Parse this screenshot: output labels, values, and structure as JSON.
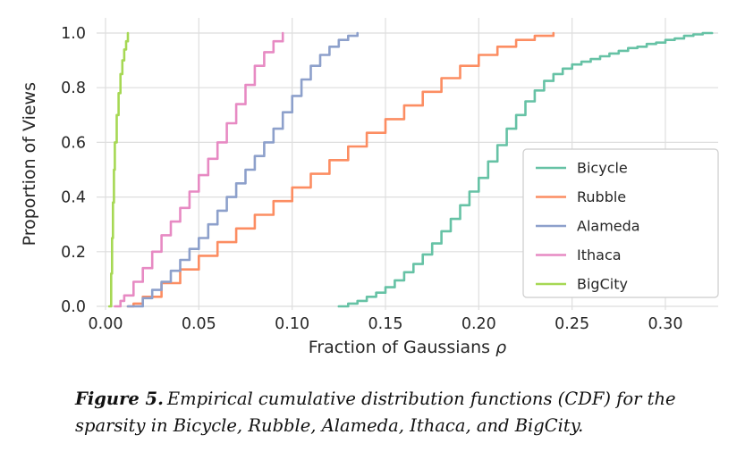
{
  "chart_data": {
    "type": "line",
    "subtype": "empirical-cdf-step",
    "title": "",
    "xlabel": "Fraction of Gaussians ρ",
    "xlabel_text": "Fraction of Gaussians",
    "xlabel_symbol": "ρ",
    "ylabel": "Proportion of Views",
    "xlim": [
      -0.005,
      0.328
    ],
    "ylim": [
      0.0,
      1.0
    ],
    "xticks": [
      0.0,
      0.05,
      0.1,
      0.15,
      0.2,
      0.25,
      0.3
    ],
    "xtick_labels": [
      "0.00",
      "0.05",
      "0.10",
      "0.15",
      "0.20",
      "0.25",
      "0.30"
    ],
    "yticks": [
      0.0,
      0.2,
      0.4,
      0.6,
      0.8,
      1.0
    ],
    "ytick_labels": [
      "0.0",
      "0.2",
      "0.4",
      "0.6",
      "0.8",
      "1.0"
    ],
    "grid": true,
    "legend": {
      "position": "center-right",
      "entries": [
        "Bicycle",
        "Rubble",
        "Alameda",
        "Ithaca",
        "BigCity"
      ]
    },
    "series": [
      {
        "name": "Bicycle",
        "color": "#66c2a5",
        "points": [
          [
            0.125,
            0.0
          ],
          [
            0.13,
            0.01
          ],
          [
            0.135,
            0.02
          ],
          [
            0.14,
            0.035
          ],
          [
            0.145,
            0.05
          ],
          [
            0.15,
            0.07
          ],
          [
            0.155,
            0.095
          ],
          [
            0.16,
            0.125
          ],
          [
            0.165,
            0.155
          ],
          [
            0.17,
            0.19
          ],
          [
            0.175,
            0.23
          ],
          [
            0.18,
            0.275
          ],
          [
            0.185,
            0.32
          ],
          [
            0.19,
            0.37
          ],
          [
            0.195,
            0.42
          ],
          [
            0.2,
            0.47
          ],
          [
            0.205,
            0.53
          ],
          [
            0.21,
            0.59
          ],
          [
            0.215,
            0.65
          ],
          [
            0.22,
            0.7
          ],
          [
            0.225,
            0.75
          ],
          [
            0.23,
            0.79
          ],
          [
            0.235,
            0.825
          ],
          [
            0.24,
            0.85
          ],
          [
            0.245,
            0.87
          ],
          [
            0.25,
            0.885
          ],
          [
            0.255,
            0.895
          ],
          [
            0.26,
            0.905
          ],
          [
            0.265,
            0.915
          ],
          [
            0.27,
            0.925
          ],
          [
            0.275,
            0.935
          ],
          [
            0.28,
            0.945
          ],
          [
            0.285,
            0.95
          ],
          [
            0.29,
            0.96
          ],
          [
            0.295,
            0.965
          ],
          [
            0.3,
            0.975
          ],
          [
            0.305,
            0.98
          ],
          [
            0.31,
            0.99
          ],
          [
            0.315,
            0.995
          ],
          [
            0.32,
            1.0
          ],
          [
            0.325,
            1.0
          ]
        ]
      },
      {
        "name": "Rubble",
        "color": "#fc8d62",
        "points": [
          [
            0.012,
            0.0
          ],
          [
            0.015,
            0.01
          ],
          [
            0.02,
            0.035
          ],
          [
            0.03,
            0.085
          ],
          [
            0.04,
            0.135
          ],
          [
            0.05,
            0.185
          ],
          [
            0.06,
            0.235
          ],
          [
            0.07,
            0.285
          ],
          [
            0.08,
            0.335
          ],
          [
            0.09,
            0.385
          ],
          [
            0.1,
            0.435
          ],
          [
            0.11,
            0.485
          ],
          [
            0.12,
            0.535
          ],
          [
            0.13,
            0.585
          ],
          [
            0.14,
            0.635
          ],
          [
            0.15,
            0.685
          ],
          [
            0.16,
            0.735
          ],
          [
            0.17,
            0.785
          ],
          [
            0.18,
            0.835
          ],
          [
            0.19,
            0.88
          ],
          [
            0.2,
            0.92
          ],
          [
            0.21,
            0.95
          ],
          [
            0.22,
            0.975
          ],
          [
            0.23,
            0.99
          ],
          [
            0.24,
            1.0
          ]
        ]
      },
      {
        "name": "Alameda",
        "color": "#8da0cb",
        "points": [
          [
            0.012,
            0.0
          ],
          [
            0.02,
            0.03
          ],
          [
            0.025,
            0.06
          ],
          [
            0.03,
            0.09
          ],
          [
            0.035,
            0.13
          ],
          [
            0.04,
            0.17
          ],
          [
            0.045,
            0.21
          ],
          [
            0.05,
            0.25
          ],
          [
            0.055,
            0.3
          ],
          [
            0.06,
            0.35
          ],
          [
            0.065,
            0.4
          ],
          [
            0.07,
            0.45
          ],
          [
            0.075,
            0.5
          ],
          [
            0.08,
            0.55
          ],
          [
            0.085,
            0.6
          ],
          [
            0.09,
            0.65
          ],
          [
            0.095,
            0.71
          ],
          [
            0.1,
            0.77
          ],
          [
            0.105,
            0.83
          ],
          [
            0.11,
            0.88
          ],
          [
            0.115,
            0.92
          ],
          [
            0.12,
            0.95
          ],
          [
            0.125,
            0.975
          ],
          [
            0.13,
            0.99
          ],
          [
            0.135,
            1.0
          ]
        ]
      },
      {
        "name": "Ithaca",
        "color": "#e78ac3",
        "points": [
          [
            0.005,
            0.0
          ],
          [
            0.008,
            0.02
          ],
          [
            0.01,
            0.04
          ],
          [
            0.015,
            0.09
          ],
          [
            0.02,
            0.14
          ],
          [
            0.025,
            0.2
          ],
          [
            0.03,
            0.26
          ],
          [
            0.035,
            0.31
          ],
          [
            0.04,
            0.36
          ],
          [
            0.045,
            0.42
          ],
          [
            0.05,
            0.48
          ],
          [
            0.055,
            0.54
          ],
          [
            0.06,
            0.6
          ],
          [
            0.065,
            0.67
          ],
          [
            0.07,
            0.74
          ],
          [
            0.075,
            0.81
          ],
          [
            0.08,
            0.88
          ],
          [
            0.085,
            0.93
          ],
          [
            0.09,
            0.97
          ],
          [
            0.095,
            1.0
          ]
        ]
      },
      {
        "name": "BigCity",
        "color": "#a6d854",
        "points": [
          [
            0.002,
            0.0
          ],
          [
            0.003,
            0.12
          ],
          [
            0.0035,
            0.25
          ],
          [
            0.004,
            0.38
          ],
          [
            0.0045,
            0.5
          ],
          [
            0.005,
            0.6
          ],
          [
            0.006,
            0.7
          ],
          [
            0.007,
            0.78
          ],
          [
            0.008,
            0.85
          ],
          [
            0.009,
            0.9
          ],
          [
            0.01,
            0.94
          ],
          [
            0.011,
            0.97
          ],
          [
            0.012,
            1.0
          ]
        ]
      }
    ]
  },
  "caption": {
    "label": "Figure 5.",
    "text": "Empirical cumulative distribution functions (CDF) for the sparsity in Bicycle, Rubble, Alameda, Ithaca, and BigCity."
  }
}
